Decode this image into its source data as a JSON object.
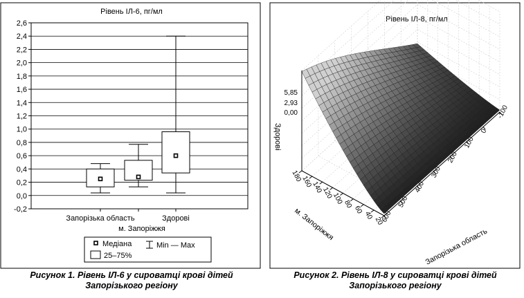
{
  "chart_data": [
    {
      "type": "box",
      "title": "Рівень ІЛ-6, пг/мл",
      "xlabel": "м. Запоріжжя",
      "ylim": [
        -0.2,
        2.6
      ],
      "yticks": [
        "-0,2",
        "0,0",
        "0,2",
        "0,4",
        "0,6",
        "0,8",
        "1,0",
        "1,2",
        "1,4",
        "1,6",
        "1,8",
        "2,0",
        "2,2",
        "2,4",
        "2,6"
      ],
      "categories": [
        "Запорізька область",
        "",
        "Здорові"
      ],
      "boxes": [
        {
          "min": 0.04,
          "q1": 0.13,
          "median": 0.25,
          "q3": 0.4,
          "max": 0.48
        },
        {
          "min": 0.13,
          "q1": 0.23,
          "median": 0.28,
          "q3": 0.53,
          "max": 0.77
        },
        {
          "min": 0.04,
          "q1": 0.34,
          "median": 0.6,
          "q3": 0.96,
          "max": 2.4
        }
      ],
      "legend": {
        "median": "Медіана",
        "box": "25–75%",
        "whisker": "Min — Max"
      },
      "caption_line1": "Рисунок 1. Рівень ІЛ-6 у сироватці крові дітей",
      "caption_line2": "Запорізького регіону"
    },
    {
      "type": "surface",
      "title": "Рівень ІЛ-8, пг/мл",
      "zlabel": "Здорові",
      "zticks": [
        "5,85",
        "2,93",
        "0,00"
      ],
      "xlabel": "м. Запоріжжя",
      "xticks": [
        "20",
        "40",
        "60",
        "80",
        "100",
        "120",
        "140",
        "160",
        "180"
      ],
      "ylabel": "Запорізька область",
      "yticks": [
        "600",
        "500",
        "400",
        "300",
        "200",
        "100",
        "0",
        "-100"
      ],
      "caption_line1": "Рисунок 2. Рівень ІЛ-8 у сироватці крові дітей",
      "caption_line2": "Запорізького регіону"
    }
  ]
}
